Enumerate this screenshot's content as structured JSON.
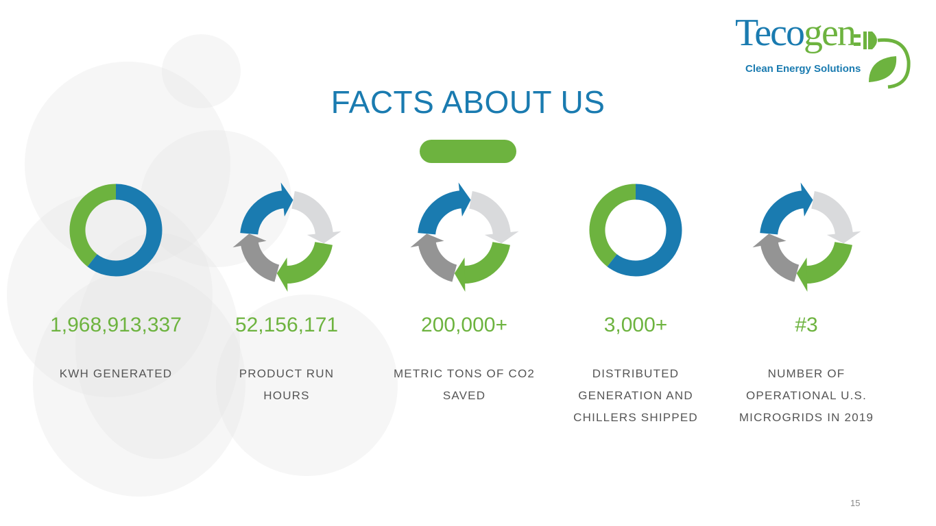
{
  "logo": {
    "name_part1": "Teco",
    "name_part2": "gen",
    "tagline": "Clean Energy Solutions"
  },
  "title": "FACTS ABOUT US",
  "colors": {
    "blue": "#1a7bb0",
    "green": "#6db33f",
    "light_gray": "#d9dadc",
    "dark_gray": "#949494"
  },
  "facts": [
    {
      "icon": "donut-icon",
      "value": "1,968,913,337",
      "label": "KWH GENERATED"
    },
    {
      "icon": "cycle-arrows-icon",
      "value": "52,156,171",
      "label": "PRODUCT RUN HOURS"
    },
    {
      "icon": "cycle-arrows-icon",
      "value": "200,000+",
      "label": "METRIC TONS OF CO2 SAVED"
    },
    {
      "icon": "donut-icon",
      "value": "3,000+",
      "label": "DISTRIBUTED GENERATION AND CHILLERS SHIPPED"
    },
    {
      "icon": "cycle-arrows-icon",
      "value": "#3",
      "label": "NUMBER OF OPERATIONAL U.S. MICROGRIDS IN 2019"
    }
  ],
  "page_number": "15"
}
